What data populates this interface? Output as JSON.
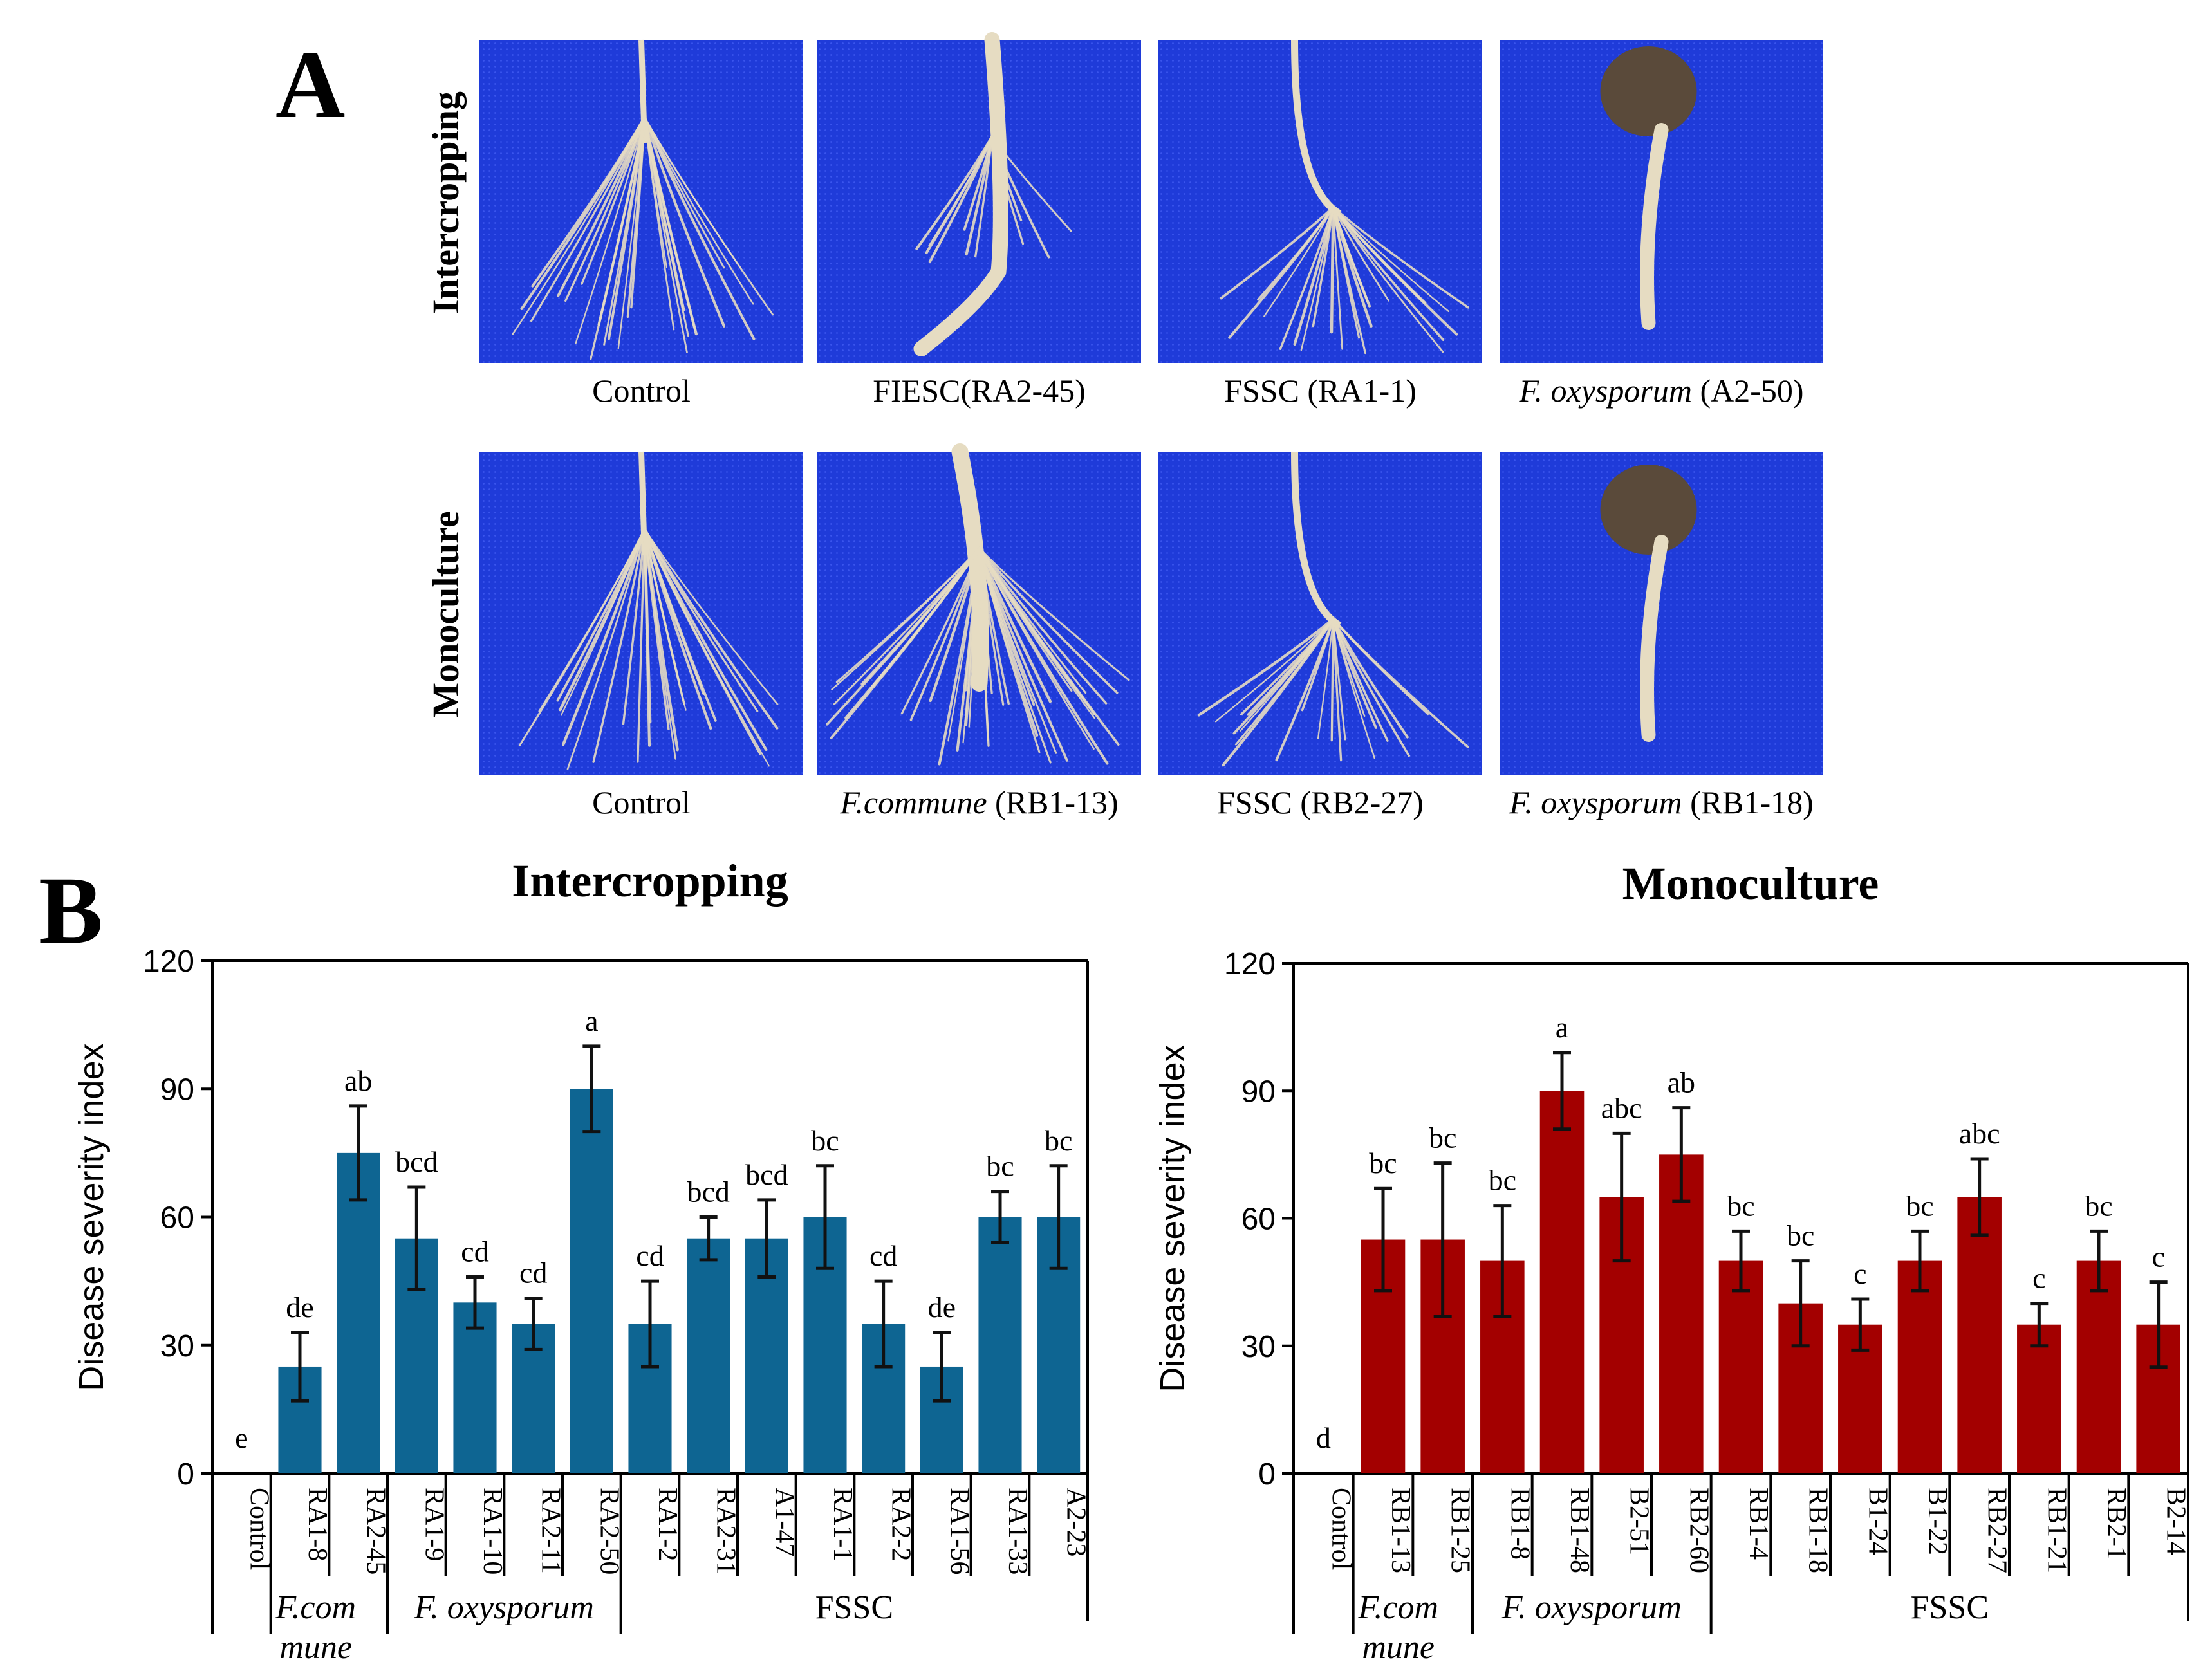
{
  "panel_a": {
    "letter": "A",
    "rows": [
      {
        "label": "Intercropping",
        "captions": [
          {
            "parts": [
              {
                "text": "Control",
                "italic": false
              }
            ]
          },
          {
            "parts": [
              {
                "text": "FIESC(RA2-45)",
                "italic": false
              }
            ]
          },
          {
            "parts": [
              {
                "text": "FSSC (RA1-1)",
                "italic": false
              }
            ]
          },
          {
            "parts": [
              {
                "text": "F. oxysporum",
                "italic": true
              },
              {
                "text": " (A2-50)",
                "italic": false
              }
            ]
          }
        ]
      },
      {
        "label": "Monoculture",
        "captions": [
          {
            "parts": [
              {
                "text": "Control",
                "italic": false
              }
            ]
          },
          {
            "parts": [
              {
                "text": "F.commune",
                "italic": true
              },
              {
                "text": " (RB1-13)",
                "italic": false
              }
            ]
          },
          {
            "parts": [
              {
                "text": "FSSC (RB2-27)",
                "italic": false
              }
            ]
          },
          {
            "parts": [
              {
                "text": "F. oxysporum",
                "italic": true
              },
              {
                "text": " (RB1-18)",
                "italic": false
              }
            ]
          }
        ]
      }
    ],
    "colors": {
      "background": "#1f3bd9",
      "root": "#e6dcc2",
      "seed": "#5a4a3a"
    }
  },
  "panel_b": {
    "letter": "B"
  },
  "chart_data": [
    {
      "type": "bar",
      "title": "Intercropping",
      "ylabel": "Disease severity index",
      "xlabel": "",
      "ylim": [
        0,
        120
      ],
      "yticks": [
        0,
        30,
        60,
        90,
        120
      ],
      "bar_color": "#0e6592",
      "categories": [
        "Control",
        "RA1-8",
        "RA2-45",
        "RA1-9",
        "RA1-10",
        "RA2-11",
        "RA2-50",
        "RA1-2",
        "RA2-31",
        "A1-47",
        "RA1-1",
        "RA2-2",
        "RA1-56",
        "RA1-33",
        "A2-23"
      ],
      "values": [
        0,
        25,
        75,
        55,
        40,
        35,
        90,
        35,
        55,
        55,
        60,
        35,
        25,
        60,
        60
      ],
      "errors": [
        0,
        8,
        11,
        12,
        6,
        6,
        10,
        10,
        5,
        9,
        12,
        10,
        8,
        6,
        12
      ],
      "significance": [
        "e",
        "de",
        "ab",
        "bcd",
        "cd",
        "cd",
        "a",
        "cd",
        "bcd",
        "bcd",
        "bc",
        "cd",
        "de",
        "bc",
        "bc"
      ],
      "groups": [
        {
          "lines": [
            "F.com",
            "mune"
          ],
          "italic": true,
          "from": 1,
          "to": 2
        },
        {
          "lines": [
            "F. oxysporum"
          ],
          "italic": true,
          "from": 3,
          "to": 6
        },
        {
          "lines": [
            "FSSC"
          ],
          "italic": false,
          "from": 7,
          "to": 14
        }
      ]
    },
    {
      "type": "bar",
      "title": "Monoculture",
      "ylabel": "Disease severity index",
      "xlabel": "",
      "ylim": [
        0,
        120
      ],
      "yticks": [
        0,
        30,
        60,
        90,
        120
      ],
      "bar_color": "#a30000",
      "categories": [
        "Control",
        "RB1-13",
        "RB1-25",
        "RB1-8",
        "RB1-48",
        "B2-51",
        "RB2-60",
        "RB1-4",
        "RB1-18",
        "B1-24",
        "B1-22",
        "RB2-27",
        "RB1-21",
        "RB2-1",
        "B2-14"
      ],
      "values": [
        0,
        55,
        55,
        50,
        90,
        65,
        75,
        50,
        40,
        35,
        50,
        65,
        35,
        50,
        35
      ],
      "errors": [
        0,
        12,
        18,
        13,
        9,
        15,
        11,
        7,
        10,
        6,
        7,
        9,
        5,
        7,
        10
      ],
      "significance": [
        "d",
        "bc",
        "bc",
        "bc",
        "a",
        "abc",
        "ab",
        "bc",
        "bc",
        "c",
        "bc",
        "abc",
        "c",
        "bc",
        "c"
      ],
      "groups": [
        {
          "lines": [
            "F.com",
            "mune"
          ],
          "italic": true,
          "from": 1,
          "to": 2
        },
        {
          "lines": [
            "F. oxysporum"
          ],
          "italic": true,
          "from": 3,
          "to": 6
        },
        {
          "lines": [
            "FSSC"
          ],
          "italic": false,
          "from": 7,
          "to": 14
        }
      ]
    }
  ]
}
